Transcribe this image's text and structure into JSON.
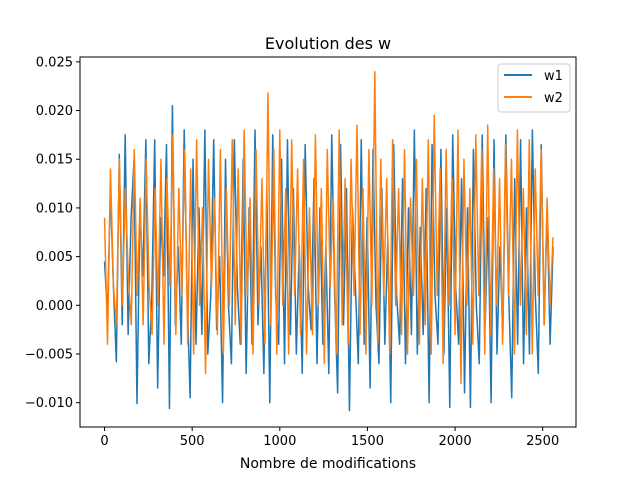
{
  "chart_data": {
    "type": "line",
    "title": "Evolution des w",
    "xlabel": "Nombre de modifications",
    "ylabel": "",
    "xlim": [
      -140,
      2690
    ],
    "ylim": [
      -0.0125,
      0.0255
    ],
    "x_ticks": [
      0,
      500,
      1000,
      1500,
      2000,
      2500
    ],
    "x_tick_labels": [
      "0",
      "500",
      "1000",
      "1500",
      "2000",
      "2500"
    ],
    "y_ticks": [
      -0.01,
      -0.005,
      0.0,
      0.005,
      0.01,
      0.015,
      0.02,
      0.025
    ],
    "y_tick_labels": [
      "−0.010",
      "−0.005",
      "0.000",
      "0.005",
      "0.010",
      "0.015",
      "0.020",
      "0.025"
    ],
    "grid": false,
    "legend_position": "top-right",
    "series": [
      {
        "name": "w1",
        "color": "#1f77b4",
        "n_points": 2560,
        "values": [
          0.0045,
          -0.001,
          0.012,
          0.002,
          -0.0058,
          0.0155,
          -0.002,
          0.0175,
          -0.003,
          0.009,
          0.015,
          -0.0101,
          0.01,
          0.003,
          0.017,
          -0.006,
          0.0005,
          0.017,
          -0.0085,
          0.009,
          0.003,
          0.0165,
          -0.0106,
          0.0205,
          -0.002,
          0.006,
          -0.004,
          0.018,
          0.001,
          -0.0095,
          0.015,
          -0.004,
          0.01,
          -0.003,
          0.018,
          -0.005,
          0.001,
          0.017,
          -0.0025,
          0.005,
          -0.01,
          0.015,
          0.0,
          -0.006,
          0.017,
          0.002,
          -0.004,
          0.015,
          -0.007,
          0.01,
          -0.004,
          0.018,
          -0.002,
          0.006,
          -0.007,
          0.012,
          -0.01,
          0.0175,
          0.001,
          -0.004,
          0.015,
          -0.006,
          0.017,
          -0.003,
          0.012,
          -0.005,
          0.006,
          -0.007,
          0.0165,
          0.002,
          -0.0025,
          0.013,
          -0.006,
          0.01,
          -0.004,
          0.006,
          -0.007,
          0.0175,
          0.001,
          -0.009,
          0.0165,
          -0.002,
          0.012,
          -0.0108,
          0.01,
          0.002,
          -0.006,
          0.017,
          -0.004,
          0.009,
          -0.0085,
          0.016,
          0.0,
          -0.006,
          0.012,
          -0.004,
          0.007,
          -0.01,
          0.0165,
          0.001,
          -0.004,
          0.013,
          -0.006,
          0.01,
          -0.003,
          0.018,
          -0.005,
          0.008,
          -0.003,
          0.012,
          -0.01,
          0.0165,
          0.001,
          -0.004,
          0.016,
          -0.005,
          0.01,
          -0.0105,
          0.0175,
          0.002,
          -0.004,
          0.013,
          -0.009,
          0.01,
          -0.0105,
          0.016,
          0.0,
          -0.006,
          0.0175,
          -0.002,
          0.009,
          -0.01,
          0.017,
          -0.005,
          0.006,
          -0.003,
          0.0175,
          0.001,
          -0.0095,
          0.013,
          -0.004,
          0.017,
          -0.006,
          0.01,
          -0.005,
          0.018,
          0.001,
          -0.007,
          0.0165,
          -0.002,
          0.01,
          -0.004,
          0.006
        ]
      },
      {
        "name": "w2",
        "color": "#ff7f0e",
        "n_points": 2560,
        "values": [
          0.009,
          -0.004,
          0.014,
          0.002,
          -0.002,
          0.015,
          0.0,
          0.012,
          0.003,
          -0.002,
          0.016,
          0.001,
          0.011,
          -0.002,
          0.015,
          0.002,
          -0.003,
          0.012,
          0.0,
          0.015,
          -0.004,
          0.013,
          0.002,
          0.0175,
          -0.003,
          0.012,
          0.001,
          0.016,
          -0.004,
          0.014,
          -0.005,
          0.017,
          0.0,
          0.01,
          -0.007,
          0.015,
          0.002,
          0.011,
          -0.003,
          0.016,
          -0.005,
          0.012,
          0.0,
          0.017,
          -0.002,
          0.014,
          -0.004,
          0.018,
          0.001,
          0.011,
          -0.005,
          0.016,
          0.0,
          0.013,
          -0.004,
          0.0218,
          -0.002,
          0.016,
          -0.005,
          0.018,
          0.0,
          0.012,
          -0.005,
          0.017,
          0.001,
          0.014,
          -0.003,
          0.015,
          -0.005,
          0.01,
          -0.003,
          0.0175,
          0.0,
          0.012,
          -0.006,
          0.016,
          0.002,
          0.011,
          -0.005,
          0.018,
          -0.002,
          0.013,
          -0.004,
          0.015,
          0.001,
          0.0185,
          -0.003,
          0.012,
          -0.005,
          0.016,
          0.0,
          0.024,
          -0.004,
          0.015,
          0.001,
          0.013,
          -0.005,
          0.017,
          0.0,
          0.012,
          -0.003,
          0.016,
          -0.005,
          0.011,
          0.001,
          0.015,
          -0.004,
          0.013,
          -0.002,
          0.017,
          -0.005,
          0.0195,
          0.001,
          0.014,
          -0.006,
          0.016,
          0.0,
          0.013,
          -0.003,
          0.018,
          -0.008,
          0.015,
          0.0,
          0.012,
          -0.004,
          0.0175,
          0.001,
          0.016,
          -0.005,
          0.0185,
          -0.003,
          0.014,
          0.0,
          0.013,
          -0.004,
          0.0165,
          0.001,
          0.015,
          -0.005,
          0.018,
          0.0,
          0.012,
          -0.003,
          0.017,
          -0.005,
          0.014,
          0.001,
          0.016,
          -0.002,
          0.011,
          0.0,
          0.007
        ]
      }
    ]
  }
}
